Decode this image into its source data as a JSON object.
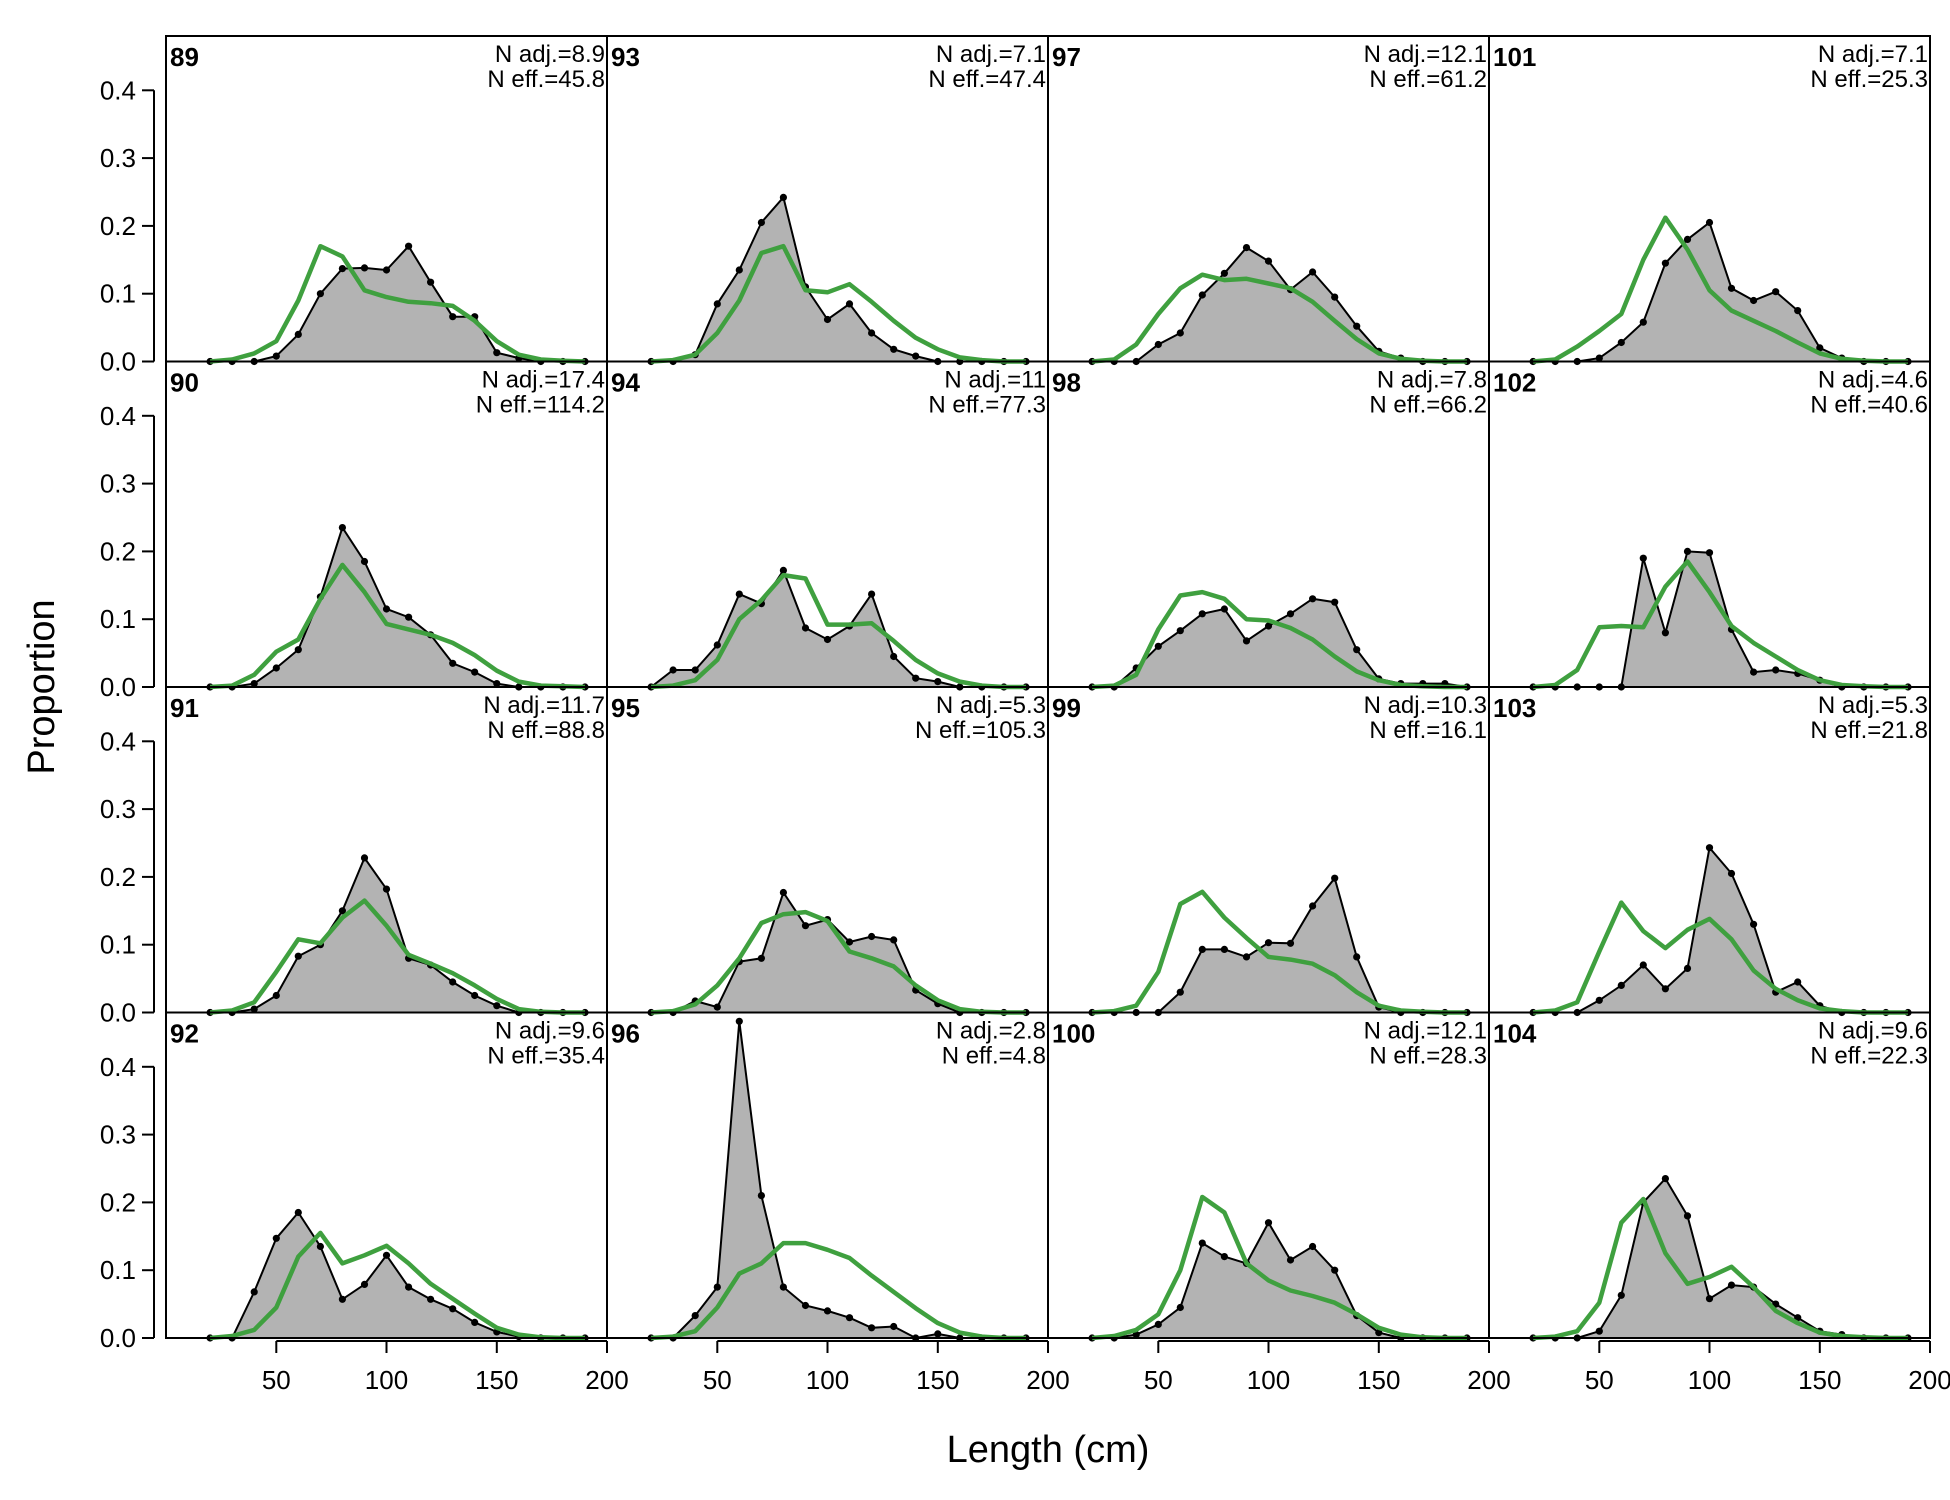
{
  "chart_data": {
    "type": "area",
    "xlabel": "Length (cm)",
    "ylabel": "Proportion",
    "xlim": [
      0,
      200
    ],
    "ylim": [
      0,
      0.48
    ],
    "x_ticks": [
      "50",
      "100",
      "150",
      "200"
    ],
    "y_ticks": [
      "0.0",
      "0.1",
      "0.2",
      "0.3",
      "0.4"
    ],
    "grid": false,
    "layout": "4 rows x 4 columns, panels filled column-wise",
    "colors": {
      "observed_fill": "#b3b3b3",
      "observed_line": "#000000",
      "expected_line": "#3fa03f",
      "zero_line": "#b0b0b0"
    },
    "x": [
      20,
      30,
      40,
      50,
      60,
      70,
      80,
      90,
      100,
      110,
      120,
      130,
      140,
      150,
      160,
      170,
      180,
      190
    ],
    "panels": [
      {
        "label": "89",
        "n_adj": "N adj.=8.9",
        "n_eff": "N eff.=45.8",
        "observed": [
          0.0,
          0.0,
          0.0,
          0.008,
          0.04,
          0.1,
          0.137,
          0.138,
          0.135,
          0.17,
          0.117,
          0.066,
          0.066,
          0.013,
          0.005,
          0.0,
          0.0,
          0.0
        ],
        "expected": [
          0.0,
          0.003,
          0.012,
          0.03,
          0.09,
          0.17,
          0.155,
          0.105,
          0.095,
          0.088,
          0.086,
          0.082,
          0.06,
          0.03,
          0.01,
          0.003,
          0.001,
          0.0
        ]
      },
      {
        "label": "90",
        "n_adj": "N adj.=17.4",
        "n_eff": "N eff.=114.2",
        "observed": [
          0.0,
          0.0,
          0.005,
          0.028,
          0.055,
          0.133,
          0.235,
          0.185,
          0.115,
          0.103,
          0.077,
          0.035,
          0.022,
          0.005,
          0.0,
          0.0,
          0.0,
          0.0
        ],
        "expected": [
          0.0,
          0.002,
          0.018,
          0.052,
          0.07,
          0.13,
          0.18,
          0.14,
          0.093,
          0.085,
          0.077,
          0.065,
          0.047,
          0.024,
          0.008,
          0.002,
          0.001,
          0.0
        ]
      },
      {
        "label": "91",
        "n_adj": "N adj.=11.7",
        "n_eff": "N eff.=88.8",
        "observed": [
          0.0,
          0.0,
          0.005,
          0.025,
          0.083,
          0.1,
          0.15,
          0.228,
          0.182,
          0.08,
          0.07,
          0.045,
          0.025,
          0.01,
          0.0,
          0.0,
          0.0,
          0.0
        ],
        "expected": [
          0.0,
          0.003,
          0.015,
          0.06,
          0.108,
          0.102,
          0.14,
          0.165,
          0.128,
          0.085,
          0.072,
          0.058,
          0.04,
          0.02,
          0.005,
          0.001,
          0.0,
          0.0
        ]
      },
      {
        "label": "92",
        "n_adj": "N adj.=9.6",
        "n_eff": "N eff.=35.4",
        "observed": [
          0.0,
          0.0,
          0.068,
          0.147,
          0.185,
          0.135,
          0.057,
          0.079,
          0.122,
          0.075,
          0.057,
          0.043,
          0.023,
          0.009,
          0.002,
          0.0,
          0.0,
          0.0
        ],
        "expected": [
          0.0,
          0.003,
          0.012,
          0.045,
          0.12,
          0.155,
          0.11,
          0.122,
          0.136,
          0.11,
          0.08,
          0.058,
          0.036,
          0.015,
          0.005,
          0.001,
          0.0,
          0.0
        ]
      },
      {
        "label": "93",
        "n_adj": "N adj.=7.1",
        "n_eff": "N eff.=47.4",
        "observed": [
          0.0,
          0.0,
          0.01,
          0.085,
          0.135,
          0.205,
          0.242,
          0.11,
          0.062,
          0.085,
          0.042,
          0.018,
          0.008,
          0.0,
          0.0,
          0.0,
          0.0,
          0.0
        ],
        "expected": [
          0.0,
          0.002,
          0.01,
          0.042,
          0.09,
          0.16,
          0.17,
          0.105,
          0.102,
          0.114,
          0.088,
          0.06,
          0.035,
          0.018,
          0.006,
          0.002,
          0.0,
          0.0
        ]
      },
      {
        "label": "94",
        "n_adj": "N adj.=11",
        "n_eff": "N eff.=77.3",
        "observed": [
          0.0,
          0.025,
          0.025,
          0.062,
          0.137,
          0.123,
          0.172,
          0.087,
          0.07,
          0.09,
          0.137,
          0.045,
          0.013,
          0.008,
          0.0,
          0.0,
          0.0,
          0.0
        ],
        "expected": [
          0.0,
          0.002,
          0.01,
          0.04,
          0.1,
          0.128,
          0.165,
          0.16,
          0.092,
          0.092,
          0.094,
          0.068,
          0.04,
          0.02,
          0.008,
          0.002,
          0.0,
          0.0
        ]
      },
      {
        "label": "95",
        "n_adj": "N adj.=5.3",
        "n_eff": "N eff.=105.3",
        "observed": [
          0.0,
          0.0,
          0.017,
          0.008,
          0.075,
          0.08,
          0.177,
          0.128,
          0.137,
          0.104,
          0.112,
          0.107,
          0.033,
          0.013,
          0.0,
          0.0,
          0.0,
          0.0
        ],
        "expected": [
          0.0,
          0.002,
          0.012,
          0.04,
          0.08,
          0.132,
          0.145,
          0.148,
          0.135,
          0.09,
          0.08,
          0.068,
          0.04,
          0.018,
          0.005,
          0.001,
          0.0,
          0.0
        ]
      },
      {
        "label": "96",
        "n_adj": "N adj.=2.8",
        "n_eff": "N eff.=4.8",
        "observed": [
          0.0,
          0.0,
          0.033,
          0.075,
          0.467,
          0.21,
          0.075,
          0.048,
          0.04,
          0.03,
          0.015,
          0.017,
          0.0,
          0.006,
          0.0,
          0.0,
          0.0,
          0.0
        ],
        "expected": [
          0.0,
          0.002,
          0.01,
          0.045,
          0.095,
          0.11,
          0.14,
          0.14,
          0.13,
          0.118,
          0.092,
          0.068,
          0.044,
          0.022,
          0.008,
          0.002,
          0.0,
          0.0
        ]
      },
      {
        "label": "97",
        "n_adj": "N adj.=12.1",
        "n_eff": "N eff.=61.2",
        "observed": [
          0.0,
          0.0,
          0.0,
          0.025,
          0.042,
          0.098,
          0.13,
          0.168,
          0.148,
          0.106,
          0.132,
          0.095,
          0.052,
          0.015,
          0.005,
          0.0,
          0.0,
          0.0
        ],
        "expected": [
          0.0,
          0.003,
          0.025,
          0.07,
          0.108,
          0.128,
          0.12,
          0.122,
          0.115,
          0.108,
          0.088,
          0.06,
          0.033,
          0.012,
          0.004,
          0.001,
          0.0,
          0.0
        ]
      },
      {
        "label": "98",
        "n_adj": "N adj.=7.8",
        "n_eff": "N eff.=66.2",
        "observed": [
          0.0,
          0.0,
          0.028,
          0.06,
          0.083,
          0.108,
          0.115,
          0.068,
          0.09,
          0.108,
          0.13,
          0.125,
          0.055,
          0.012,
          0.005,
          0.005,
          0.005,
          0.0
        ],
        "expected": [
          0.0,
          0.002,
          0.018,
          0.085,
          0.135,
          0.14,
          0.13,
          0.1,
          0.098,
          0.087,
          0.07,
          0.045,
          0.023,
          0.01,
          0.003,
          0.001,
          0.0,
          0.0
        ]
      },
      {
        "label": "99",
        "n_adj": "N adj.=10.3",
        "n_eff": "N eff.=16.1",
        "observed": [
          0.0,
          0.0,
          0.0,
          0.0,
          0.03,
          0.093,
          0.093,
          0.082,
          0.103,
          0.102,
          0.157,
          0.198,
          0.082,
          0.008,
          0.0,
          0.0,
          0.0,
          0.0
        ],
        "expected": [
          0.0,
          0.002,
          0.01,
          0.06,
          0.16,
          0.178,
          0.14,
          0.11,
          0.082,
          0.078,
          0.072,
          0.055,
          0.03,
          0.01,
          0.003,
          0.001,
          0.0,
          0.0
        ]
      },
      {
        "label": "100",
        "n_adj": "N adj.=12.1",
        "n_eff": "N eff.=28.3",
        "observed": [
          0.0,
          0.0,
          0.005,
          0.02,
          0.045,
          0.14,
          0.12,
          0.11,
          0.17,
          0.115,
          0.135,
          0.1,
          0.033,
          0.008,
          0.0,
          0.0,
          0.0,
          0.0
        ],
        "expected": [
          0.0,
          0.003,
          0.012,
          0.035,
          0.1,
          0.208,
          0.185,
          0.11,
          0.085,
          0.07,
          0.062,
          0.052,
          0.035,
          0.015,
          0.005,
          0.001,
          0.0,
          0.0
        ]
      },
      {
        "label": "101",
        "n_adj": "N adj.=7.1",
        "n_eff": "N eff.=25.3",
        "observed": [
          0.0,
          0.0,
          0.0,
          0.005,
          0.028,
          0.058,
          0.145,
          0.18,
          0.205,
          0.108,
          0.09,
          0.103,
          0.075,
          0.02,
          0.005,
          0.0,
          0.0,
          0.0
        ],
        "expected": [
          0.0,
          0.003,
          0.022,
          0.045,
          0.07,
          0.15,
          0.212,
          0.165,
          0.105,
          0.075,
          0.06,
          0.045,
          0.028,
          0.012,
          0.004,
          0.001,
          0.0,
          0.0
        ]
      },
      {
        "label": "102",
        "n_adj": "N adj.=4.6",
        "n_eff": "N eff.=40.6",
        "observed": [
          0.0,
          0.0,
          0.0,
          0.0,
          0.0,
          0.19,
          0.08,
          0.2,
          0.198,
          0.085,
          0.022,
          0.025,
          0.02,
          0.01,
          0.0,
          0.0,
          0.0,
          0.0
        ],
        "expected": [
          0.0,
          0.003,
          0.025,
          0.088,
          0.09,
          0.088,
          0.148,
          0.185,
          0.14,
          0.09,
          0.065,
          0.045,
          0.025,
          0.01,
          0.003,
          0.001,
          0.0,
          0.0
        ]
      },
      {
        "label": "103",
        "n_adj": "N adj.=5.3",
        "n_eff": "N eff.=21.8",
        "observed": [
          0.0,
          0.0,
          0.0,
          0.018,
          0.04,
          0.07,
          0.035,
          0.065,
          0.243,
          0.205,
          0.13,
          0.03,
          0.045,
          0.01,
          0.0,
          0.0,
          0.0,
          0.0
        ],
        "expected": [
          0.0,
          0.003,
          0.015,
          0.09,
          0.162,
          0.12,
          0.095,
          0.122,
          0.138,
          0.108,
          0.062,
          0.035,
          0.018,
          0.006,
          0.002,
          0.0,
          0.0,
          0.0
        ]
      },
      {
        "label": "104",
        "n_adj": "N adj.=9.6",
        "n_eff": "N eff.=22.3",
        "observed": [
          0.0,
          0.0,
          0.0,
          0.01,
          0.063,
          0.2,
          0.235,
          0.18,
          0.058,
          0.078,
          0.075,
          0.05,
          0.03,
          0.01,
          0.005,
          0.0,
          0.0,
          0.0
        ],
        "expected": [
          0.0,
          0.002,
          0.01,
          0.052,
          0.17,
          0.205,
          0.125,
          0.08,
          0.09,
          0.105,
          0.075,
          0.04,
          0.022,
          0.008,
          0.003,
          0.001,
          0.0,
          0.0
        ]
      }
    ]
  }
}
